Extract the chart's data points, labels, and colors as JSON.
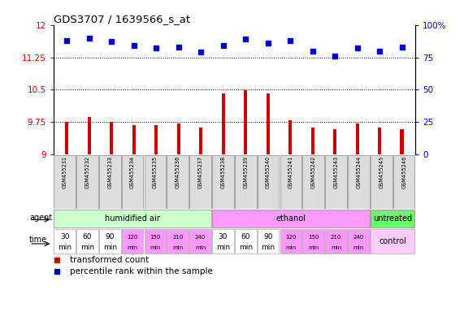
{
  "title": "GDS3707 / 1639566_s_at",
  "samples": [
    "GSM455231",
    "GSM455232",
    "GSM455233",
    "GSM455234",
    "GSM455235",
    "GSM455236",
    "GSM455237",
    "GSM455238",
    "GSM455239",
    "GSM455240",
    "GSM455241",
    "GSM455242",
    "GSM455243",
    "GSM455244",
    "GSM455245",
    "GSM455246"
  ],
  "bar_values": [
    9.75,
    9.86,
    9.75,
    9.67,
    9.67,
    9.71,
    9.63,
    10.42,
    10.48,
    10.42,
    9.79,
    9.63,
    9.59,
    9.71,
    9.63,
    9.58
  ],
  "dot_values_pct": [
    88,
    90,
    87,
    84,
    82,
    83,
    79,
    84,
    89,
    86,
    88,
    80,
    76,
    82,
    80,
    83
  ],
  "bar_color": "#cc0000",
  "dot_color": "#0000cc",
  "ylim_left": [
    9.0,
    12.0
  ],
  "ylim_right": [
    0,
    100
  ],
  "yticks_left": [
    9.0,
    9.75,
    10.5,
    11.25,
    12.0
  ],
  "yticks_right": [
    0,
    25,
    50,
    75,
    100
  ],
  "ytick_labels_left": [
    "9",
    "9.75",
    "10.5",
    "11.25",
    "12"
  ],
  "ytick_labels_right": [
    "0",
    "25",
    "50",
    "75",
    "100%"
  ],
  "agent_groups": [
    {
      "label": "humidified air",
      "start": 0,
      "end": 7,
      "color": "#ccffcc"
    },
    {
      "label": "ethanol",
      "start": 7,
      "end": 14,
      "color": "#ff99ff"
    },
    {
      "label": "untreated",
      "start": 14,
      "end": 16,
      "color": "#66ff66"
    }
  ],
  "time_labels": [
    "30\nmin",
    "60\nmin",
    "90\nmin",
    "120\nmin",
    "150\nmin",
    "210\nmin",
    "240\nmin",
    "30\nmin",
    "60\nmin",
    "90\nmin",
    "120\nmin",
    "150\nmin",
    "210\nmin",
    "240\nmin"
  ],
  "time_colors": [
    "#ffffff",
    "#ffffff",
    "#ffffff",
    "#ff99ff",
    "#ff99ff",
    "#ff99ff",
    "#ff99ff",
    "#ffffff",
    "#ffffff",
    "#ffffff",
    "#ff99ff",
    "#ff99ff",
    "#ff99ff",
    "#ff99ff"
  ],
  "time_control_label": "control",
  "time_control_color": "#ffccff",
  "agent_label": "agent",
  "time_label": "time",
  "legend_bar": "transformed count",
  "legend_dot": "percentile rank within the sample",
  "bar_baseline": 9.0,
  "grid_yticks": [
    9.75,
    10.5,
    11.25
  ],
  "sample_bg_color": "#dddddd",
  "bar_width": 0.15
}
